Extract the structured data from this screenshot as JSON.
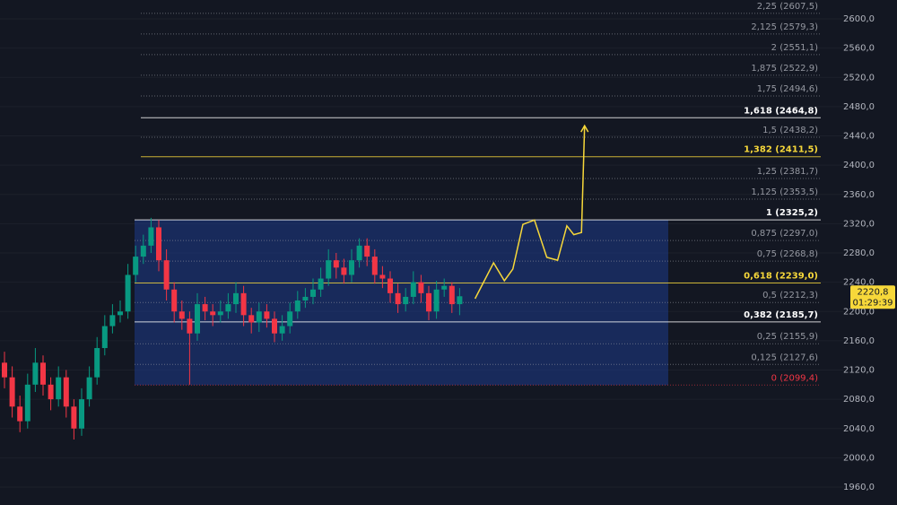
{
  "chart_data": {
    "type": "candlestick",
    "up_color": "#089981",
    "down_color": "#f23645",
    "grid": true,
    "ylim": [
      1950,
      2620
    ],
    "yticks": [
      {
        "value": 1960,
        "label": "1960,0"
      },
      {
        "value": 2000,
        "label": "2000,0"
      },
      {
        "value": 2040,
        "label": "2040,0"
      },
      {
        "value": 2080,
        "label": "2080,0"
      },
      {
        "value": 2120,
        "label": "2120,0"
      },
      {
        "value": 2160,
        "label": "2160,0"
      },
      {
        "value": 2200,
        "label": "2200,0"
      },
      {
        "value": 2240,
        "label": "2240,0"
      },
      {
        "value": 2280,
        "label": "2280,0"
      },
      {
        "value": 2320,
        "label": "2320,0"
      },
      {
        "value": 2360,
        "label": "2360,0"
      },
      {
        "value": 2400,
        "label": "2400,0"
      },
      {
        "value": 2440,
        "label": "2440,0"
      },
      {
        "value": 2480,
        "label": "2480,0"
      },
      {
        "value": 2520,
        "label": "2520,0"
      },
      {
        "value": 2560,
        "label": "2560,0"
      },
      {
        "value": 2600,
        "label": "2600,0"
      }
    ],
    "open": [
      2130,
      2110,
      2070,
      2050,
      2100,
      2130,
      2100,
      2080,
      2110,
      2070,
      2040,
      2080,
      2110,
      2150,
      2180,
      2195,
      2200,
      2250,
      2275,
      2290,
      2315,
      2270,
      2230,
      2200,
      2190,
      2170,
      2210,
      2200,
      2195,
      2200,
      2210,
      2225,
      2195,
      2185,
      2200,
      2190,
      2170,
      2180,
      2200,
      2215,
      2220,
      2230,
      2245,
      2270,
      2260,
      2250,
      2270,
      2290,
      2275,
      2250,
      2245,
      2225,
      2210,
      2220,
      2240,
      2225,
      2200,
      2230,
      2235,
      2210
    ],
    "high": [
      2145,
      2125,
      2085,
      2115,
      2150,
      2140,
      2110,
      2125,
      2120,
      2080,
      2095,
      2125,
      2165,
      2195,
      2210,
      2215,
      2265,
      2290,
      2305,
      2328,
      2325,
      2285,
      2240,
      2215,
      2200,
      2225,
      2220,
      2210,
      2215,
      2225,
      2240,
      2235,
      2205,
      2212,
      2210,
      2200,
      2195,
      2212,
      2228,
      2232,
      2245,
      2260,
      2285,
      2280,
      2272,
      2285,
      2300,
      2300,
      2285,
      2262,
      2255,
      2238,
      2232,
      2255,
      2250,
      2235,
      2242,
      2245,
      2240,
      2232
    ],
    "low": [
      2095,
      2055,
      2035,
      2040,
      2090,
      2085,
      2065,
      2070,
      2055,
      2025,
      2030,
      2070,
      2100,
      2140,
      2170,
      2185,
      2190,
      2240,
      2265,
      2280,
      2255,
      2215,
      2185,
      2175,
      2100,
      2160,
      2188,
      2180,
      2185,
      2190,
      2198,
      2180,
      2170,
      2172,
      2178,
      2158,
      2160,
      2170,
      2190,
      2205,
      2210,
      2220,
      2235,
      2245,
      2238,
      2240,
      2260,
      2262,
      2238,
      2232,
      2212,
      2198,
      2200,
      2210,
      2212,
      2188,
      2190,
      2220,
      2198,
      2195
    ],
    "close": [
      2110,
      2070,
      2050,
      2100,
      2130,
      2100,
      2080,
      2110,
      2070,
      2040,
      2080,
      2110,
      2150,
      2180,
      2195,
      2200,
      2250,
      2275,
      2290,
      2315,
      2270,
      2230,
      2200,
      2190,
      2170,
      2210,
      2200,
      2195,
      2200,
      2210,
      2225,
      2195,
      2185,
      2200,
      2190,
      2170,
      2180,
      2200,
      2215,
      2220,
      2230,
      2245,
      2270,
      2260,
      2250,
      2270,
      2290,
      2275,
      2250,
      2245,
      2225,
      2210,
      2220,
      2240,
      2225,
      2200,
      2230,
      2235,
      2210,
      2220.8
    ],
    "projection": {
      "color": "#f7d83a",
      "x": [
        61.0,
        63.4,
        64.8,
        65.9,
        67.2,
        68.7,
        70.3,
        71.7,
        72.9,
        73.8,
        74.8,
        75.2
      ],
      "values": [
        2217.5,
        2266.5,
        2242,
        2258,
        2319,
        2325,
        2274,
        2270,
        2317,
        2305,
        2308,
        2454
      ]
    },
    "fib_levels": [
      {
        "value": 2607.5,
        "label": "2,25 (2607,5)",
        "color": "#9598a1",
        "bold": false
      },
      {
        "value": 2579.3,
        "label": "2,125 (2579,3)",
        "color": "#9598a1",
        "bold": false
      },
      {
        "value": 2551.1,
        "label": "2 (2551,1)",
        "color": "#9598a1",
        "bold": false
      },
      {
        "value": 2522.9,
        "label": "1,875 (2522,9)",
        "color": "#9598a1",
        "bold": false
      },
      {
        "value": 2494.6,
        "label": "1,75 (2494,6)",
        "color": "#9598a1",
        "bold": false
      },
      {
        "value": 2464.8,
        "label": "1,618 (2464,8)",
        "color": "#ffffff",
        "bold": true
      },
      {
        "value": 2438.2,
        "label": "1,5 (2438,2)",
        "color": "#9598a1",
        "bold": false
      },
      {
        "value": 2411.5,
        "label": "1,382 (2411,5)",
        "color": "#f7d83a",
        "bold": true
      },
      {
        "value": 2381.7,
        "label": "1,25 (2381,7)",
        "color": "#9598a1",
        "bold": false
      },
      {
        "value": 2353.5,
        "label": "1,125 (2353,5)",
        "color": "#9598a1",
        "bold": false
      },
      {
        "value": 2325.2,
        "label": "1 (2325,2)",
        "color": "#ffffff",
        "bold": true
      },
      {
        "value": 2297.0,
        "label": "0,875 (2297,0)",
        "color": "#9598a1",
        "bold": false
      },
      {
        "value": 2268.8,
        "label": "0,75 (2268,8)",
        "color": "#9598a1",
        "bold": false
      },
      {
        "value": 2239.0,
        "label": "0,618 (2239,0)",
        "color": "#f7d83a",
        "bold": true
      },
      {
        "value": 2212.3,
        "label": "0,5 (2212,3)",
        "color": "#9598a1",
        "bold": false
      },
      {
        "value": 2185.7,
        "label": "0,382 (2185,7)",
        "color": "#ffffff",
        "bold": true
      },
      {
        "value": 2155.9,
        "label": "0,25 (2155,9)",
        "color": "#9598a1",
        "bold": false
      },
      {
        "value": 2127.6,
        "label": "0,125 (2127,6)",
        "color": "#9598a1",
        "bold": false
      },
      {
        "value": 2099.4,
        "label": "0 (2099,4)",
        "color": "#f23645",
        "bold": false
      }
    ],
    "current_price": {
      "value": 2220.8,
      "label": "2220,8"
    },
    "countdown": "01:29:39"
  }
}
